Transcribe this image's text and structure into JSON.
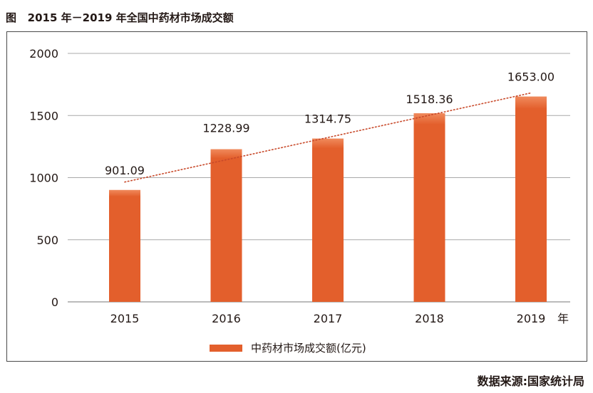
{
  "chart_data": {
    "type": "bar",
    "title": "图   2015 年－2019 年全国中药材市场成交额",
    "categories": [
      "2015",
      "2016",
      "2017",
      "2018",
      "2019"
    ],
    "x_unit": "年",
    "series": [
      {
        "name": "中药材市场成交额(亿元)",
        "values": [
          901.09,
          1228.99,
          1314.75,
          1518.36,
          1653.0
        ],
        "labels": [
          "901.09",
          "1228.99",
          "1314.75",
          "1518.36",
          "1653.00"
        ]
      }
    ],
    "ylim": [
      0,
      2000
    ],
    "yticks": [
      0,
      500,
      1000,
      1500,
      2000
    ],
    "grid": true,
    "trendline": "dotted linear trend",
    "legend_position": "bottom",
    "bar_color": "#e35f2c",
    "trend_color": "#c8492a"
  },
  "source": "数据来源:国家统计局"
}
